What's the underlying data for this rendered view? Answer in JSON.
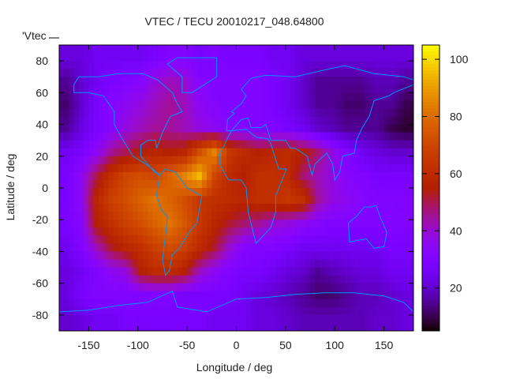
{
  "chart_data": {
    "type": "heatmap",
    "title": "VTEC / TECU 20010217_048.64800",
    "xlabel": "Longitude / deg",
    "ylabel": "Latitude / deg",
    "key_label": "'Vtec",
    "xlim": [
      -180,
      180
    ],
    "ylim": [
      -90,
      90
    ],
    "cblim": [
      5,
      105
    ],
    "xticks": [
      -150,
      -100,
      -50,
      0,
      50,
      100,
      150
    ],
    "yticks": [
      -80,
      -60,
      -40,
      -20,
      0,
      20,
      40,
      60,
      80
    ],
    "cbticks": [
      20,
      40,
      60,
      80,
      100
    ],
    "xtick_labels": [
      "-150",
      "-100",
      "-50",
      "0",
      "50",
      "100",
      "150"
    ],
    "ytick_labels": [
      "-80",
      "-60",
      "-40",
      "-20",
      "0",
      "20",
      "40",
      "60",
      "80"
    ],
    "cbtick_labels": [
      "20",
      "40",
      "60",
      "80",
      "100"
    ],
    "grid": false,
    "colorbar": "right",
    "coastline_color": "#0096ff",
    "lon_centers": [
      -172.5,
      -157.5,
      -142.5,
      -127.5,
      -112.5,
      -97.5,
      -82.5,
      -67.5,
      -52.5,
      -37.5,
      -22.5,
      -7.5,
      7.5,
      22.5,
      37.5,
      52.5,
      67.5,
      82.5,
      97.5,
      112.5,
      127.5,
      142.5,
      157.5,
      172.5
    ],
    "lat_centers": [
      82.5,
      67.5,
      52.5,
      37.5,
      22.5,
      7.5,
      -7.5,
      -22.5,
      -37.5,
      -52.5,
      -67.5,
      -82.5
    ],
    "values": [
      [
        22,
        22,
        25,
        25,
        25,
        25,
        28,
        30,
        30,
        28,
        30,
        28,
        28,
        28,
        25,
        25,
        22,
        22,
        22,
        22,
        22,
        22,
        22,
        22
      ],
      [
        15,
        20,
        25,
        28,
        30,
        32,
        38,
        42,
        40,
        32,
        30,
        30,
        30,
        30,
        28,
        25,
        20,
        15,
        15,
        15,
        15,
        18,
        18,
        15
      ],
      [
        12,
        20,
        28,
        32,
        35,
        38,
        42,
        45,
        42,
        35,
        32,
        30,
        30,
        30,
        28,
        25,
        20,
        15,
        15,
        12,
        12,
        15,
        15,
        10
      ],
      [
        15,
        22,
        28,
        32,
        38,
        42,
        45,
        45,
        42,
        38,
        35,
        32,
        32,
        30,
        30,
        28,
        25,
        20,
        18,
        15,
        15,
        15,
        10,
        8
      ],
      [
        25,
        28,
        35,
        45,
        50,
        55,
        58,
        55,
        58,
        72,
        85,
        65,
        60,
        55,
        58,
        60,
        55,
        48,
        38,
        30,
        25,
        22,
        20,
        20
      ],
      [
        28,
        35,
        50,
        62,
        70,
        72,
        70,
        78,
        85,
        95,
        70,
        60,
        55,
        62,
        62,
        60,
        48,
        42,
        38,
        32,
        30,
        28,
        28,
        28
      ],
      [
        28,
        35,
        58,
        68,
        72,
        78,
        82,
        78,
        72,
        65,
        62,
        60,
        58,
        62,
        62,
        65,
        62,
        45,
        38,
        35,
        32,
        30,
        30,
        30
      ],
      [
        28,
        32,
        55,
        62,
        68,
        72,
        78,
        82,
        75,
        65,
        58,
        52,
        48,
        45,
        40,
        38,
        35,
        32,
        30,
        30,
        30,
        30,
        30,
        30
      ],
      [
        25,
        30,
        42,
        52,
        58,
        62,
        68,
        72,
        68,
        60,
        52,
        40,
        32,
        30,
        30,
        28,
        25,
        25,
        25,
        25,
        25,
        25,
        28,
        28
      ],
      [
        22,
        25,
        30,
        35,
        38,
        55,
        60,
        60,
        55,
        42,
        35,
        30,
        28,
        28,
        25,
        22,
        20,
        15,
        18,
        20,
        22,
        22,
        25,
        25
      ],
      [
        22,
        28,
        30,
        30,
        30,
        30,
        30,
        30,
        28,
        28,
        28,
        28,
        25,
        22,
        20,
        18,
        15,
        12,
        12,
        15,
        18,
        18,
        20,
        22
      ],
      [
        20,
        22,
        25,
        25,
        28,
        28,
        28,
        28,
        28,
        28,
        25,
        25,
        25,
        22,
        22,
        20,
        18,
        18,
        18,
        18,
        18,
        20,
        20,
        22
      ]
    ]
  }
}
